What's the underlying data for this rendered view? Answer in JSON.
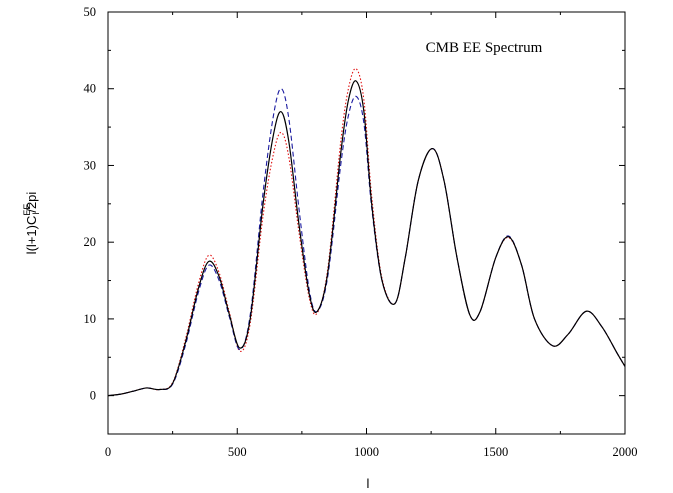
{
  "chart_data": {
    "type": "line",
    "title": "",
    "annotation": "CMB EE Spectrum",
    "xlabel": "l",
    "ylabel": {
      "base": "l(l+1)C",
      "superscript": "EE",
      "subscript": "l",
      "suffix": "/2pi"
    },
    "xlim": [
      0,
      2000
    ],
    "ylim": [
      -5,
      50
    ],
    "xticks": [
      0,
      500,
      1000,
      1500,
      2000
    ],
    "yticks": [
      0,
      10,
      20,
      30,
      40,
      50
    ],
    "grid": false,
    "legend": "none",
    "series": [
      {
        "style": "solid",
        "color": "#000000",
        "x": [
          0,
          50,
          100,
          150,
          200,
          250,
          300,
          350,
          390,
          430,
          470,
          510,
          550,
          600,
          640,
          670,
          700,
          740,
          780,
          810,
          850,
          900,
          930,
          960,
          990,
          1020,
          1060,
          1110,
          1150,
          1200,
          1255,
          1300,
          1350,
          1400,
          1440,
          1500,
          1550,
          1600,
          1650,
          1720,
          1780,
          1850,
          1910,
          1970,
          2000
        ],
        "y": [
          0,
          0.2,
          0.6,
          1.0,
          0.8,
          1.6,
          7.0,
          14.0,
          17.5,
          15.5,
          10.5,
          6.2,
          10.0,
          25.0,
          34.0,
          37.0,
          33.0,
          22.0,
          13.0,
          11.0,
          16.0,
          31.5,
          38.5,
          41.0,
          37.0,
          25.0,
          15.0,
          12.0,
          18.0,
          28.0,
          32.2,
          28.0,
          18.0,
          10.5,
          11.0,
          18.0,
          20.7,
          17.0,
          10.0,
          6.5,
          8.0,
          11.0,
          9.0,
          5.5,
          3.8
        ]
      },
      {
        "style": "dashed",
        "color": "#1a1aa0",
        "x": [
          0,
          50,
          100,
          150,
          200,
          250,
          300,
          350,
          390,
          430,
          470,
          510,
          550,
          600,
          640,
          670,
          700,
          740,
          780,
          810,
          850,
          900,
          930,
          960,
          990,
          1020,
          1060,
          1110,
          1150,
          1200,
          1255,
          1300,
          1350,
          1400,
          1440,
          1500,
          1550,
          1600,
          1650,
          1720,
          1780,
          1850,
          1910,
          1970,
          2000
        ],
        "y": [
          0,
          0.2,
          0.6,
          1.0,
          0.8,
          1.5,
          6.6,
          13.5,
          17.0,
          15.0,
          10.2,
          6.0,
          10.5,
          26.5,
          36.5,
          40.0,
          36.0,
          24.0,
          13.5,
          11.0,
          15.5,
          30.0,
          36.5,
          39.0,
          35.5,
          24.5,
          15.0,
          12.0,
          18.0,
          28.0,
          32.2,
          28.0,
          18.0,
          10.5,
          11.0,
          18.0,
          20.8,
          17.0,
          10.0,
          6.5,
          8.0,
          11.0,
          9.0,
          5.5,
          3.8
        ]
      },
      {
        "style": "dotted",
        "color": "#e01010",
        "x": [
          0,
          50,
          100,
          150,
          200,
          250,
          300,
          350,
          390,
          430,
          470,
          510,
          550,
          600,
          640,
          670,
          700,
          740,
          780,
          810,
          850,
          900,
          930,
          960,
          990,
          1020,
          1060,
          1110,
          1150,
          1200,
          1255,
          1300,
          1350,
          1400,
          1440,
          1500,
          1550,
          1600,
          1650,
          1720,
          1780,
          1850,
          1910,
          1970,
          2000
        ],
        "y": [
          0,
          0.2,
          0.6,
          1.0,
          0.8,
          1.7,
          7.4,
          14.6,
          18.3,
          16.0,
          10.8,
          5.8,
          9.4,
          23.5,
          31.5,
          34.3,
          31.0,
          21.0,
          12.5,
          10.8,
          16.5,
          33.0,
          40.0,
          42.6,
          38.5,
          26.0,
          15.3,
          12.0,
          18.0,
          28.0,
          32.2,
          28.0,
          18.0,
          10.5,
          11.0,
          18.0,
          20.6,
          17.0,
          10.0,
          6.5,
          8.0,
          11.0,
          9.0,
          5.5,
          3.8
        ]
      }
    ]
  }
}
